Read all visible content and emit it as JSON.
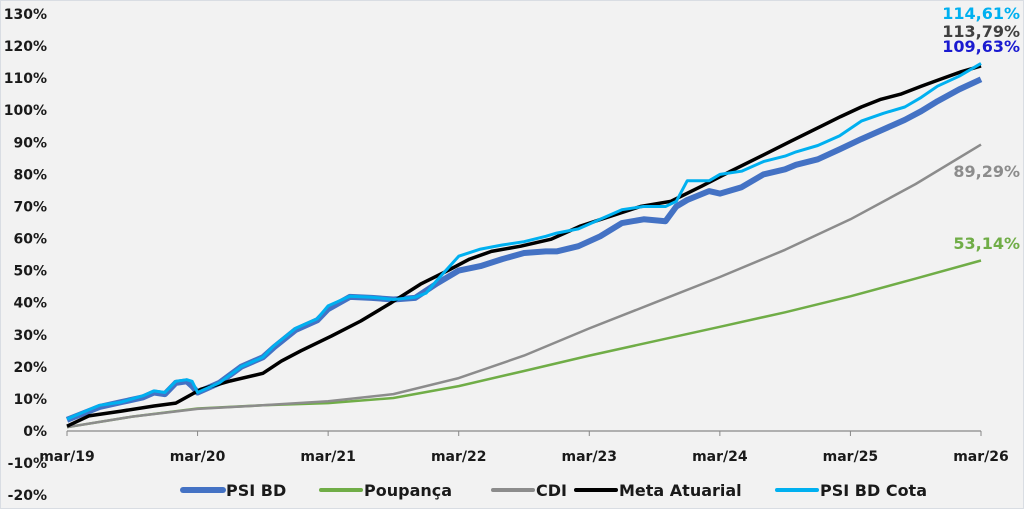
{
  "chart_data": {
    "type": "line",
    "title": "",
    "xlabel": "",
    "ylabel": "",
    "x_unit": "months since mar/19",
    "xlim": [
      0,
      84
    ],
    "ylim": [
      -20,
      130
    ],
    "yticks": [
      "-20%",
      "-10%",
      "0%",
      "10%",
      "20%",
      "30%",
      "40%",
      "50%",
      "60%",
      "70%",
      "80%",
      "90%",
      "100%",
      "110%",
      "120%",
      "130%"
    ],
    "ytick_values": [
      -20,
      -10,
      0,
      10,
      20,
      30,
      40,
      50,
      60,
      70,
      80,
      90,
      100,
      110,
      120,
      130
    ],
    "xticks": [
      "mar/19",
      "mar/20",
      "mar/21",
      "mar/22",
      "mar/23",
      "mar/24",
      "mar/25",
      "mar/26"
    ],
    "xtick_values": [
      0,
      12,
      24,
      36,
      48,
      60,
      72,
      84
    ],
    "grid": false,
    "legend_position": "bottom",
    "series": [
      {
        "name": "PSI BD",
        "color": "#4472c4",
        "end_label": "109,63%",
        "label_color": "#1a1ad0",
        "width": 6,
        "points": [
          [
            0,
            3.5
          ],
          [
            3,
            7.5
          ],
          [
            5,
            9
          ],
          [
            7,
            10.5
          ],
          [
            8,
            12
          ],
          [
            9,
            11.5
          ],
          [
            10,
            15
          ],
          [
            11,
            15.5
          ],
          [
            11.5,
            14
          ],
          [
            12,
            12
          ],
          [
            14,
            15
          ],
          [
            16,
            20
          ],
          [
            18,
            23
          ],
          [
            19,
            26
          ],
          [
            21,
            31.5
          ],
          [
            23,
            34.5
          ],
          [
            24,
            38
          ],
          [
            26,
            41.8
          ],
          [
            28,
            41.5
          ],
          [
            30,
            41
          ],
          [
            32,
            41.5
          ],
          [
            34,
            46
          ],
          [
            36,
            50
          ],
          [
            38,
            51.4
          ],
          [
            40,
            53.6
          ],
          [
            42,
            55.5
          ],
          [
            44,
            56
          ],
          [
            45,
            56
          ],
          [
            47,
            57.6
          ],
          [
            49,
            60.7
          ],
          [
            51,
            64.8
          ],
          [
            53,
            66
          ],
          [
            55,
            65.4
          ],
          [
            56,
            70
          ],
          [
            57,
            72
          ],
          [
            59,
            74.8
          ],
          [
            60,
            74
          ],
          [
            62,
            76
          ],
          [
            64,
            80
          ],
          [
            66,
            81.6
          ],
          [
            67,
            83
          ],
          [
            69,
            84.7
          ],
          [
            71,
            87.8
          ],
          [
            73,
            91
          ],
          [
            75,
            94
          ],
          [
            77,
            97
          ],
          [
            78.5,
            99.7
          ],
          [
            80,
            102.8
          ],
          [
            82,
            106.5
          ],
          [
            84,
            109.63
          ]
        ]
      },
      {
        "name": "Poupança",
        "color": "#70ad47",
        "end_label": "53,14%",
        "label_color": "#70ad47",
        "width": 2.5,
        "points": [
          [
            0,
            1.2
          ],
          [
            6,
            4.5
          ],
          [
            12,
            7
          ],
          [
            18,
            8
          ],
          [
            24,
            8.7
          ],
          [
            30,
            10.3
          ],
          [
            36,
            14
          ],
          [
            42,
            18.7
          ],
          [
            48,
            23.5
          ],
          [
            54,
            28
          ],
          [
            60,
            32.5
          ],
          [
            66,
            37
          ],
          [
            72,
            42
          ],
          [
            78,
            47.5
          ],
          [
            84,
            53.14
          ]
        ]
      },
      {
        "name": "CDI",
        "color": "#8c8c8c",
        "end_label": "89,29%",
        "label_color": "#8c8c8c",
        "width": 2.5,
        "points": [
          [
            0,
            1.2
          ],
          [
            6,
            4.5
          ],
          [
            12,
            6.9
          ],
          [
            18,
            8
          ],
          [
            24,
            9.3
          ],
          [
            30,
            11.5
          ],
          [
            36,
            16.5
          ],
          [
            42,
            23.5
          ],
          [
            48,
            32
          ],
          [
            54,
            40
          ],
          [
            60,
            48
          ],
          [
            66,
            56.5
          ],
          [
            72,
            66
          ],
          [
            78,
            77
          ],
          [
            84,
            89.29
          ]
        ]
      },
      {
        "name": "Meta Atuarial",
        "color": "#000000",
        "end_label": "113,79%",
        "label_color": "#404040",
        "width": 3.5,
        "points": [
          [
            0,
            1.5
          ],
          [
            2,
            4.7
          ],
          [
            5,
            6.2
          ],
          [
            8,
            7.8
          ],
          [
            10,
            8.7
          ],
          [
            11.5,
            11.5
          ],
          [
            12.3,
            13
          ],
          [
            15,
            15.6
          ],
          [
            18,
            18
          ],
          [
            19.7,
            21.8
          ],
          [
            21.5,
            25
          ],
          [
            24.3,
            29.6
          ],
          [
            27,
            34.3
          ],
          [
            29.8,
            40
          ],
          [
            32.5,
            45.8
          ],
          [
            35,
            50
          ],
          [
            37,
            53.6
          ],
          [
            39,
            56
          ],
          [
            41.7,
            57.6
          ],
          [
            44.5,
            59.8
          ],
          [
            47.2,
            63.9
          ],
          [
            50,
            67
          ],
          [
            52.7,
            70
          ],
          [
            55.5,
            71.6
          ],
          [
            58.3,
            76.3
          ],
          [
            61,
            81
          ],
          [
            63.8,
            85.7
          ],
          [
            66.5,
            90.3
          ],
          [
            69.3,
            95
          ],
          [
            71.1,
            98
          ],
          [
            73,
            101
          ],
          [
            74.8,
            103.4
          ],
          [
            76.6,
            105
          ],
          [
            78.5,
            107.5
          ],
          [
            80.3,
            109.7
          ],
          [
            82.2,
            112
          ],
          [
            84,
            113.79
          ]
        ]
      },
      {
        "name": "PSI BD Cota",
        "color": "#00b0f0",
        "end_label": "114,61%",
        "label_color": "#00b0f0",
        "width": 3,
        "points": [
          [
            0,
            3.7
          ],
          [
            3,
            8
          ],
          [
            5,
            9
          ],
          [
            7,
            11
          ],
          [
            8,
            12.5
          ],
          [
            9,
            12
          ],
          [
            10,
            15.5
          ],
          [
            11,
            16
          ],
          [
            11.5,
            15.5
          ],
          [
            12,
            12
          ],
          [
            14,
            15
          ],
          [
            16,
            20
          ],
          [
            18,
            23
          ],
          [
            19,
            26.5
          ],
          [
            21,
            32
          ],
          [
            23,
            35
          ],
          [
            24,
            39
          ],
          [
            26,
            42
          ],
          [
            28,
            41.7
          ],
          [
            30,
            41
          ],
          [
            32,
            41.7
          ],
          [
            33,
            43
          ],
          [
            34,
            47
          ],
          [
            36,
            54.5
          ],
          [
            38,
            56.7
          ],
          [
            40,
            58
          ],
          [
            42,
            59
          ],
          [
            44,
            60.7
          ],
          [
            45,
            61.7
          ],
          [
            47,
            63
          ],
          [
            49,
            66
          ],
          [
            51,
            69
          ],
          [
            53,
            70
          ],
          [
            55,
            70
          ],
          [
            56,
            71.6
          ],
          [
            57,
            78
          ],
          [
            59,
            78
          ],
          [
            60,
            80
          ],
          [
            62,
            81
          ],
          [
            64,
            84
          ],
          [
            66,
            85.7
          ],
          [
            67,
            87
          ],
          [
            69,
            89
          ],
          [
            71,
            92
          ],
          [
            73,
            96.6
          ],
          [
            75,
            99
          ],
          [
            77,
            101
          ],
          [
            78.5,
            104
          ],
          [
            80,
            107.5
          ],
          [
            82,
            110.6
          ],
          [
            84,
            114.61
          ]
        ]
      }
    ]
  }
}
